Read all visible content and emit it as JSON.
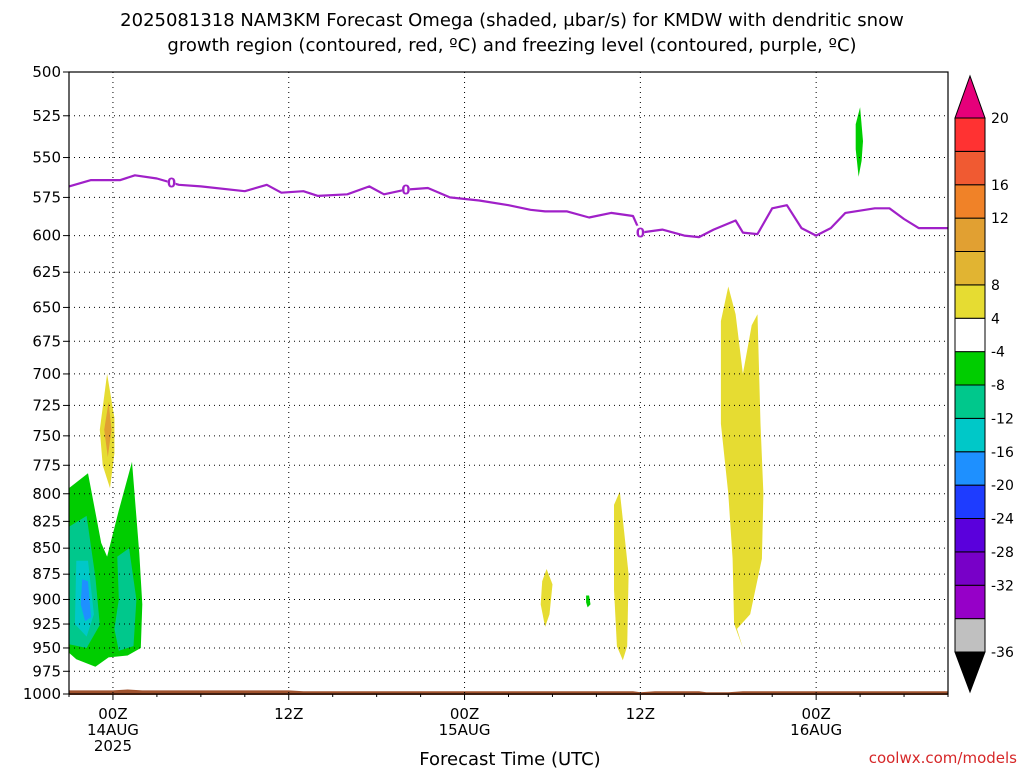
{
  "chart_data": {
    "type": "time-height",
    "title_line1": "2025081318 NAM3KM Forecast Omega (shaded, μbar/s) for KMDW with dendritic snow",
    "title_line2": "growth region (contoured, red, ºC) and freezing level (contoured, purple, ºC)",
    "xlabel": "Forecast Time (UTC)",
    "credit": "coolwx.com/models",
    "x_domain_hours": [
      -3,
      57
    ],
    "y_levels": [
      500,
      525,
      550,
      575,
      600,
      625,
      650,
      675,
      700,
      725,
      750,
      775,
      800,
      825,
      850,
      875,
      900,
      925,
      950,
      975,
      1000
    ],
    "y_reversed": true,
    "grid": true,
    "x_ticks": [
      {
        "hour": 0,
        "line1": "00Z",
        "line2": "14AUG",
        "line3": "2025"
      },
      {
        "hour": 12,
        "line1": "12Z",
        "line2": "",
        "line3": ""
      },
      {
        "hour": 24,
        "line1": "00Z",
        "line2": "15AUG",
        "line3": ""
      },
      {
        "hour": 36,
        "line1": "12Z",
        "line2": "",
        "line3": ""
      },
      {
        "hour": 48,
        "line1": "00Z",
        "line2": "16AUG",
        "line3": ""
      }
    ],
    "freezing_level": {
      "color": "#a020c8",
      "label": "0",
      "label_hours": [
        4,
        20,
        36
      ],
      "points": [
        [
          -3,
          568
        ],
        [
          -1.5,
          564
        ],
        [
          0.5,
          564
        ],
        [
          1.5,
          561
        ],
        [
          3,
          563
        ],
        [
          4.5,
          567
        ],
        [
          6,
          568
        ],
        [
          9,
          571
        ],
        [
          10.5,
          567
        ],
        [
          11.5,
          572
        ],
        [
          13,
          571
        ],
        [
          14,
          574
        ],
        [
          16,
          573
        ],
        [
          17.5,
          568
        ],
        [
          18.5,
          573
        ],
        [
          20,
          570
        ],
        [
          21.5,
          569
        ],
        [
          23,
          575
        ],
        [
          25,
          577
        ],
        [
          27,
          580
        ],
        [
          28.5,
          583
        ],
        [
          29.5,
          584
        ],
        [
          31,
          584
        ],
        [
          32.5,
          588
        ],
        [
          34,
          585
        ],
        [
          35.5,
          587
        ],
        [
          36,
          598
        ],
        [
          37.5,
          596
        ],
        [
          39,
          600
        ],
        [
          40,
          601
        ],
        [
          41,
          596
        ],
        [
          42.5,
          590
        ],
        [
          43,
          598
        ],
        [
          44,
          599
        ],
        [
          45,
          582
        ],
        [
          46,
          580
        ],
        [
          47,
          595
        ],
        [
          48,
          600
        ],
        [
          49,
          595
        ],
        [
          50,
          585
        ],
        [
          52,
          582
        ],
        [
          53,
          582
        ],
        [
          54,
          589
        ],
        [
          55,
          595
        ],
        [
          56,
          595
        ],
        [
          57,
          595
        ]
      ]
    },
    "omega_regions": [
      {
        "name": "green-left",
        "color": "#00cd00",
        "points": [
          [
            -3,
            795
          ],
          [
            -1.7,
            782
          ],
          [
            -0.8,
            845
          ],
          [
            -0.4,
            858
          ],
          [
            0.4,
            815
          ],
          [
            1.3,
            772
          ],
          [
            1.8,
            855
          ],
          [
            2,
            905
          ],
          [
            1.9,
            950
          ],
          [
            1,
            958
          ],
          [
            -0.3,
            960
          ],
          [
            -1.2,
            970
          ],
          [
            -2.5,
            962
          ],
          [
            -3,
            955
          ]
        ]
      },
      {
        "name": "teal-left",
        "color": "#00c88c",
        "points": [
          [
            -3,
            830
          ],
          [
            -1.8,
            820
          ],
          [
            -1.2,
            878
          ],
          [
            -0.9,
            926
          ],
          [
            -1.8,
            950
          ],
          [
            -3,
            946
          ]
        ]
      },
      {
        "name": "teal-left-2",
        "color": "#00c88c",
        "points": [
          [
            0.3,
            858
          ],
          [
            1.1,
            850
          ],
          [
            1.6,
            900
          ],
          [
            1.4,
            948
          ],
          [
            0.4,
            953
          ],
          [
            0.1,
            930
          ],
          [
            0.4,
            900
          ]
        ]
      },
      {
        "name": "cyan-left",
        "color": "#00c8c8",
        "points": [
          [
            -2.5,
            862
          ],
          [
            -1.7,
            862
          ],
          [
            -1.3,
            915
          ],
          [
            -1.8,
            938
          ],
          [
            -2.6,
            925
          ]
        ]
      },
      {
        "name": "blue-left",
        "color": "#1e90ff",
        "points": [
          [
            -2.1,
            880
          ],
          [
            -1.7,
            882
          ],
          [
            -1.5,
            918
          ],
          [
            -1.9,
            922
          ],
          [
            -2.2,
            905
          ]
        ]
      },
      {
        "name": "yellow-left",
        "color": "#e6dc32",
        "points": [
          [
            -0.9,
            745
          ],
          [
            -0.4,
            700
          ],
          [
            0.1,
            735
          ],
          [
            0.1,
            765
          ],
          [
            -0.2,
            795
          ],
          [
            -0.7,
            775
          ]
        ]
      },
      {
        "name": "orange-left",
        "color": "#e1a032",
        "points": [
          [
            -0.6,
            745
          ],
          [
            -0.3,
            722
          ],
          [
            -0.1,
            745
          ],
          [
            -0.35,
            768
          ]
        ]
      },
      {
        "name": "yellow-1",
        "color": "#e6dc32",
        "points": [
          [
            29.3,
            882
          ],
          [
            29.6,
            870
          ],
          [
            30,
            885
          ],
          [
            29.8,
            915
          ],
          [
            29.5,
            928
          ],
          [
            29.2,
            905
          ]
        ]
      },
      {
        "name": "green-small",
        "color": "#00cd00",
        "points": [
          [
            32.3,
            896
          ],
          [
            32.5,
            896
          ],
          [
            32.6,
            905
          ],
          [
            32.4,
            908
          ],
          [
            32.3,
            903
          ]
        ]
      },
      {
        "name": "yellow-2",
        "color": "#e6dc32",
        "points": [
          [
            34.2,
            810
          ],
          [
            34.6,
            798
          ],
          [
            34.9,
            835
          ],
          [
            35.2,
            875
          ],
          [
            35.1,
            948
          ],
          [
            34.8,
            963
          ],
          [
            34.4,
            948
          ],
          [
            34.2,
            890
          ]
        ]
      },
      {
        "name": "yellow-big",
        "color": "#e6dc32",
        "points": [
          [
            41.5,
            660
          ],
          [
            42,
            635
          ],
          [
            42.5,
            655
          ],
          [
            43,
            700
          ],
          [
            43.6,
            663
          ],
          [
            44,
            655
          ],
          [
            44.2,
            740
          ],
          [
            44.4,
            800
          ],
          [
            44.3,
            860
          ],
          [
            43.5,
            915
          ],
          [
            42.6,
            930
          ],
          [
            43,
            950
          ],
          [
            42.4,
            925
          ],
          [
            42.3,
            860
          ],
          [
            42,
            800
          ],
          [
            41.5,
            740
          ]
        ]
      },
      {
        "name": "green-top",
        "color": "#00cd00",
        "points": [
          [
            50.7,
            530
          ],
          [
            51,
            520
          ],
          [
            51.2,
            540
          ],
          [
            51.1,
            552
          ],
          [
            50.9,
            562
          ],
          [
            50.7,
            545
          ]
        ]
      }
    ],
    "ground": {
      "color": "#a0522d",
      "points": [
        [
          -3,
          996
        ],
        [
          0,
          996
        ],
        [
          1,
          995
        ],
        [
          2,
          996
        ],
        [
          12,
          996
        ],
        [
          13,
          997
        ],
        [
          35.5,
          997
        ],
        [
          36,
          998
        ],
        [
          37,
          997
        ],
        [
          40,
          997
        ],
        [
          40.5,
          998
        ],
        [
          42,
          998
        ],
        [
          43,
          997
        ],
        [
          57,
          997
        ]
      ]
    },
    "colorbar": {
      "colors": [
        "#c0c0c0",
        "#9600c8",
        "#7800c8",
        "#5a00dc",
        "#1e3cff",
        "#1e90ff",
        "#00c8c8",
        "#00c88c",
        "#00cd00",
        "#ffffff",
        "#e6dc32",
        "#e1b432",
        "#e1a032",
        "#f08228",
        "#f05a32",
        "#ff3232"
      ],
      "labels": [
        "-36",
        "-32",
        "-28",
        "-24",
        "-20",
        "-16",
        "-12",
        "-8",
        "-4",
        "4",
        "8",
        "12",
        "16",
        "20"
      ],
      "top_color": "#e6007a",
      "bottom_color": "#000000"
    }
  }
}
